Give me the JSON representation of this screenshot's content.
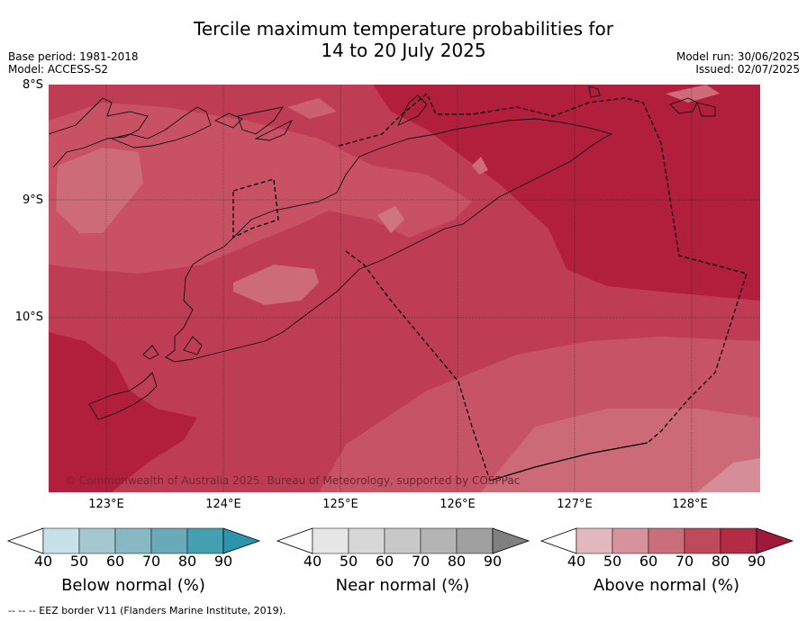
{
  "title_line1": "Tercile maximum temperature probabilities for",
  "title_line2": "14 to 20 July 2025",
  "base_period": "Base period: 1981-2018",
  "model": "Model: ACCESS-S2",
  "model_run": "Model run: 30/06/2025",
  "issued": "Issued: 02/07/2025",
  "lat_labels": [
    "8°S",
    "9°S",
    "10°S"
  ],
  "lon_labels": [
    "123°E",
    "124°E",
    "125°E",
    "126°E",
    "127°E",
    "128°E"
  ],
  "copyright": "© Commonwealth of Australia 2025. Bureau of Meteorology, supported by COSPPac",
  "footer": "-- -- -- EEZ border V11 (Flanders Marine Institute, 2019).",
  "colorbars": [
    {
      "label": "Below normal (%)",
      "ticks": [
        "40",
        "50",
        "60",
        "70",
        "80",
        "90"
      ],
      "colors": [
        "#ffffff",
        "#c6e1e8",
        "#a5c8d0",
        "#87b8c3",
        "#6aa9b7",
        "#449fb1",
        "#2b95ab"
      ]
    },
    {
      "label": "Near normal (%)",
      "ticks": [
        "40",
        "50",
        "60",
        "70",
        "80",
        "90"
      ],
      "colors": [
        "#ffffff",
        "#e6e6e6",
        "#d7d7d7",
        "#c8c8c8",
        "#b4b4b4",
        "#a0a0a0",
        "#808080"
      ]
    },
    {
      "label": "Above normal (%)",
      "ticks": [
        "40",
        "50",
        "60",
        "70",
        "80",
        "90"
      ],
      "colors": [
        "#ffffff",
        "#e2b8bf",
        "#d6939d",
        "#cb6e7b",
        "#bf4a5b",
        "#b42b45",
        "#a3173a"
      ]
    }
  ]
}
